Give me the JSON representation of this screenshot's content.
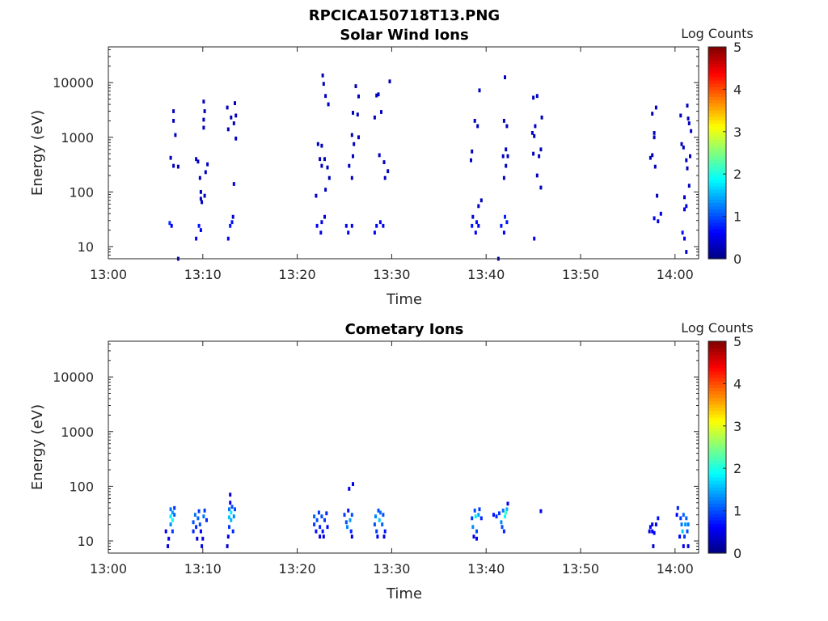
{
  "figure": {
    "title": "RPCICA150718T13.PNG"
  },
  "chart_data": [
    {
      "type": "heatmap",
      "title": "Solar Wind Ions",
      "xlabel": "Time",
      "ylabel": "Energy (eV)",
      "x_unit": "minutes since 13:00",
      "xlim": [
        0,
        62.5
      ],
      "xticks": [
        0,
        10,
        20,
        30,
        40,
        50,
        60
      ],
      "xtick_labels": [
        "13:00",
        "13:10",
        "13:20",
        "13:30",
        "13:40",
        "13:50",
        "14:00"
      ],
      "ylim": [
        6,
        45000
      ],
      "yscale": "log",
      "yticks": [
        10,
        100,
        1000,
        10000
      ],
      "ytick_labels": [
        "10",
        "100",
        "1000",
        "10000"
      ],
      "colorbar": {
        "label": "Log Counts",
        "range": [
          0,
          5
        ],
        "ticks": [
          "0",
          "1",
          "2",
          "3",
          "4",
          "5"
        ],
        "colormap": "jet"
      },
      "cells": [
        [
          6.5,
          27,
          0.8
        ],
        [
          6.7,
          24,
          0.6
        ],
        [
          6.6,
          420,
          0.3
        ],
        [
          6.9,
          300,
          0.3
        ],
        [
          6.9,
          2000,
          0.3
        ],
        [
          6.9,
          3000,
          0.3
        ],
        [
          7.1,
          1100,
          0.3
        ],
        [
          7.4,
          290,
          0.3
        ],
        [
          7.4,
          6,
          0.3
        ],
        [
          9.3,
          14,
          0.6
        ],
        [
          9.6,
          24,
          0.7
        ],
        [
          9.8,
          20,
          0.6
        ],
        [
          9.3,
          400,
          0.3
        ],
        [
          9.5,
          360,
          0.3
        ],
        [
          9.7,
          180,
          0.3
        ],
        [
          9.8,
          100,
          0.3
        ],
        [
          9.8,
          75,
          0.3
        ],
        [
          9.9,
          65,
          0.3
        ],
        [
          10.2,
          85,
          0.3
        ],
        [
          10.3,
          230,
          0.3
        ],
        [
          10.5,
          320,
          0.3
        ],
        [
          10.1,
          1500,
          0.3
        ],
        [
          10.1,
          2100,
          0.3
        ],
        [
          10.2,
          3000,
          0.3
        ],
        [
          10.1,
          4500,
          0.3
        ],
        [
          12.7,
          14,
          0.6
        ],
        [
          12.9,
          24,
          0.7
        ],
        [
          13.1,
          28,
          0.7
        ],
        [
          13.2,
          35,
          0.4
        ],
        [
          13.3,
          140,
          0.5
        ],
        [
          12.6,
          3500,
          0.3
        ],
        [
          13.0,
          2300,
          0.3
        ],
        [
          13.3,
          1800,
          0.3
        ],
        [
          13.5,
          2500,
          0.3
        ],
        [
          13.4,
          4200,
          0.3
        ],
        [
          13.5,
          950,
          0.3
        ],
        [
          12.7,
          1400,
          0.3
        ],
        [
          22.1,
          24,
          0.6
        ],
        [
          22.5,
          18,
          0.5
        ],
        [
          22.6,
          28,
          0.5
        ],
        [
          22.9,
          35,
          0.4
        ],
        [
          22.2,
          750,
          0.3
        ],
        [
          22.6,
          700,
          0.3
        ],
        [
          22.4,
          400,
          0.3
        ],
        [
          22.6,
          300,
          0.3
        ],
        [
          22.9,
          400,
          0.3
        ],
        [
          23.2,
          280,
          0.3
        ],
        [
          23.4,
          180,
          0.3
        ],
        [
          23.3,
          4000,
          0.3
        ],
        [
          23.0,
          5700,
          0.3
        ],
        [
          22.8,
          9500,
          0.3
        ],
        [
          22.7,
          13500,
          0.3
        ],
        [
          22.0,
          85,
          0.3
        ],
        [
          23.0,
          110,
          0.3
        ],
        [
          25.2,
          24,
          0.6
        ],
        [
          25.4,
          18,
          0.6
        ],
        [
          25.8,
          24,
          0.6
        ],
        [
          25.5,
          300,
          0.3
        ],
        [
          25.8,
          180,
          0.3
        ],
        [
          25.9,
          450,
          0.3
        ],
        [
          26.0,
          750,
          0.3
        ],
        [
          25.8,
          1100,
          0.3
        ],
        [
          25.9,
          2800,
          0.3
        ],
        [
          26.4,
          2600,
          0.3
        ],
        [
          26.2,
          8600,
          0.3
        ],
        [
          26.5,
          5600,
          0.3
        ],
        [
          26.5,
          1000,
          0.3
        ],
        [
          28.2,
          18,
          0.6
        ],
        [
          28.4,
          24,
          0.6
        ],
        [
          28.8,
          28,
          0.6
        ],
        [
          29.1,
          24,
          0.6
        ],
        [
          28.7,
          470,
          0.3
        ],
        [
          29.2,
          350,
          0.3
        ],
        [
          29.3,
          180,
          0.3
        ],
        [
          29.6,
          240,
          0.3
        ],
        [
          28.2,
          2300,
          0.3
        ],
        [
          28.9,
          2900,
          0.3
        ],
        [
          28.6,
          6100,
          0.3
        ],
        [
          29.8,
          10500,
          0.3
        ],
        [
          28.4,
          5800,
          0.3
        ],
        [
          38.5,
          24,
          0.7
        ],
        [
          38.6,
          35,
          0.5
        ],
        [
          38.9,
          18,
          0.6
        ],
        [
          39.0,
          28,
          0.7
        ],
        [
          39.2,
          24,
          0.6
        ],
        [
          39.5,
          70,
          0.3
        ],
        [
          39.2,
          55,
          0.3
        ],
        [
          38.5,
          550,
          0.3
        ],
        [
          38.4,
          380,
          0.3
        ],
        [
          38.8,
          2000,
          0.3
        ],
        [
          39.1,
          1600,
          0.3
        ],
        [
          39.3,
          7200,
          0.3
        ],
        [
          41.3,
          6,
          0.3
        ],
        [
          41.6,
          24,
          0.7
        ],
        [
          41.9,
          18,
          0.6
        ],
        [
          42.0,
          35,
          0.8
        ],
        [
          42.2,
          28,
          0.7
        ],
        [
          41.8,
          450,
          0.3
        ],
        [
          42.1,
          300,
          0.3
        ],
        [
          42.3,
          450,
          0.3
        ],
        [
          41.9,
          180,
          0.3
        ],
        [
          41.9,
          2000,
          0.3
        ],
        [
          42.2,
          1600,
          0.3
        ],
        [
          42.0,
          12500,
          0.3
        ],
        [
          42.1,
          600,
          0.3
        ],
        [
          45.1,
          14,
          0.6
        ],
        [
          44.9,
          1200,
          0.3
        ],
        [
          45.1,
          1050,
          0.3
        ],
        [
          45.0,
          500,
          0.3
        ],
        [
          45.4,
          200,
          0.3
        ],
        [
          45.6,
          450,
          0.3
        ],
        [
          45.8,
          600,
          0.3
        ],
        [
          45.8,
          120,
          0.3
        ],
        [
          45.0,
          5300,
          0.3
        ],
        [
          45.4,
          5700,
          0.3
        ],
        [
          45.2,
          1600,
          0.3
        ],
        [
          45.9,
          2300,
          0.3
        ],
        [
          57.4,
          420,
          0.3
        ],
        [
          57.6,
          2700,
          0.3
        ],
        [
          58.0,
          3500,
          0.3
        ],
        [
          57.8,
          1200,
          0.3
        ],
        [
          57.8,
          1000,
          0.3
        ],
        [
          57.6,
          470,
          0.3
        ],
        [
          57.9,
          290,
          0.3
        ],
        [
          58.1,
          85,
          0.3
        ],
        [
          57.8,
          33,
          0.5
        ],
        [
          58.2,
          29,
          0.5
        ],
        [
          58.5,
          40,
          0.5
        ],
        [
          60.8,
          18,
          0.7
        ],
        [
          61.0,
          14,
          0.6
        ],
        [
          61.0,
          48,
          0.5
        ],
        [
          61.2,
          55,
          0.5
        ],
        [
          61.2,
          380,
          0.3
        ],
        [
          61.3,
          270,
          0.3
        ],
        [
          61.4,
          2200,
          0.3
        ],
        [
          61.5,
          1800,
          0.3
        ],
        [
          61.3,
          3800,
          0.3
        ],
        [
          61.7,
          1300,
          0.3
        ],
        [
          60.7,
          750,
          0.3
        ],
        [
          60.9,
          650,
          0.3
        ],
        [
          61.6,
          450,
          0.3
        ],
        [
          60.6,
          2500,
          0.3
        ],
        [
          61.2,
          8,
          0.4
        ],
        [
          61.5,
          130,
          0.3
        ],
        [
          61.0,
          80,
          0.3
        ]
      ]
    },
    {
      "type": "heatmap",
      "title": "Cometary Ions",
      "xlabel": "Time",
      "ylabel": "Energy (eV)",
      "x_unit": "minutes since 13:00",
      "xlim": [
        0,
        62.5
      ],
      "xticks": [
        0,
        10,
        20,
        30,
        40,
        50,
        60
      ],
      "xtick_labels": [
        "13:00",
        "13:10",
        "13:20",
        "13:30",
        "13:40",
        "13:50",
        "14:00"
      ],
      "ylim": [
        6,
        45000
      ],
      "yscale": "log",
      "yticks": [
        10,
        100,
        1000,
        10000
      ],
      "ytick_labels": [
        "10",
        "100",
        "1000",
        "10000"
      ],
      "colorbar": {
        "label": "Log Counts",
        "range": [
          0,
          5
        ],
        "ticks": [
          "0",
          "1",
          "2",
          "3",
          "4",
          "5"
        ],
        "colormap": "jet"
      },
      "cells": [
        [
          6.1,
          15,
          0.5
        ],
        [
          6.3,
          8,
          0.4
        ],
        [
          6.4,
          11,
          0.5
        ],
        [
          6.6,
          20,
          1.3
        ],
        [
          6.6,
          28,
          1.8
        ],
        [
          6.6,
          38,
          1.2
        ],
        [
          6.8,
          15,
          0.9
        ],
        [
          6.8,
          24,
          1.9
        ],
        [
          6.8,
          33,
          1.4
        ],
        [
          7.0,
          40,
          0.9
        ],
        [
          7.0,
          30,
          1.1
        ],
        [
          9.0,
          15,
          0.8
        ],
        [
          9.0,
          22,
          1.0
        ],
        [
          9.2,
          30,
          1.2
        ],
        [
          9.3,
          18,
          0.8
        ],
        [
          9.5,
          26,
          1.1
        ],
        [
          9.6,
          35,
          0.9
        ],
        [
          9.7,
          20,
          1.0
        ],
        [
          9.8,
          15,
          0.6
        ],
        [
          10.1,
          28,
          1.2
        ],
        [
          10.2,
          36,
          0.9
        ],
        [
          10.4,
          24,
          0.8
        ],
        [
          9.4,
          11,
          0.5
        ],
        [
          10.0,
          11,
          0.5
        ],
        [
          9.9,
          8,
          0.5
        ],
        [
          12.6,
          8,
          0.4
        ],
        [
          12.7,
          12,
          0.5
        ],
        [
          12.8,
          18,
          0.9
        ],
        [
          12.8,
          27,
          1.6
        ],
        [
          12.8,
          38,
          1.2
        ],
        [
          12.9,
          50,
          0.6
        ],
        [
          12.9,
          70,
          0.4
        ],
        [
          13.0,
          33,
          1.8
        ],
        [
          13.0,
          24,
          1.5
        ],
        [
          13.1,
          42,
          1.0
        ],
        [
          13.2,
          15,
          0.8
        ],
        [
          13.3,
          28,
          1.3
        ],
        [
          13.4,
          38,
          1.0
        ],
        [
          21.8,
          20,
          0.9
        ],
        [
          21.8,
          28,
          1.1
        ],
        [
          22.0,
          15,
          0.7
        ],
        [
          22.1,
          24,
          1.0
        ],
        [
          22.3,
          33,
          0.9
        ],
        [
          22.4,
          18,
          0.8
        ],
        [
          22.6,
          28,
          1.0
        ],
        [
          22.7,
          15,
          0.7
        ],
        [
          22.9,
          24,
          0.9
        ],
        [
          23.1,
          32,
          0.8
        ],
        [
          23.2,
          18,
          0.6
        ],
        [
          22.4,
          12,
          0.5
        ],
        [
          22.8,
          12,
          0.5
        ],
        [
          25.0,
          30,
          0.9
        ],
        [
          25.2,
          22,
          1.0
        ],
        [
          25.3,
          18,
          1.3
        ],
        [
          25.4,
          36,
          0.7
        ],
        [
          25.6,
          24,
          1.4
        ],
        [
          25.7,
          15,
          0.8
        ],
        [
          25.8,
          30,
          1.0
        ],
        [
          25.5,
          90,
          0.5
        ],
        [
          25.9,
          110,
          0.5
        ],
        [
          25.8,
          12,
          0.5
        ],
        [
          28.2,
          20,
          1.0
        ],
        [
          28.3,
          28,
          1.3
        ],
        [
          28.4,
          15,
          0.9
        ],
        [
          28.6,
          36,
          1.0
        ],
        [
          28.7,
          24,
          1.6
        ],
        [
          28.8,
          33,
          1.2
        ],
        [
          29.0,
          20,
          1.1
        ],
        [
          29.1,
          30,
          1.0
        ],
        [
          29.3,
          15,
          0.7
        ],
        [
          28.5,
          12,
          0.6
        ],
        [
          29.2,
          12,
          0.5
        ],
        [
          38.5,
          26,
          0.9
        ],
        [
          38.6,
          18,
          1.3
        ],
        [
          38.8,
          36,
          1.0
        ],
        [
          38.9,
          28,
          1.8
        ],
        [
          39.0,
          15,
          1.0
        ],
        [
          39.2,
          30,
          1.4
        ],
        [
          39.3,
          38,
          0.9
        ],
        [
          39.5,
          26,
          0.8
        ],
        [
          39.0,
          11,
          0.6
        ],
        [
          38.7,
          12,
          0.5
        ],
        [
          40.8,
          30,
          0.7
        ],
        [
          41.1,
          28,
          0.8
        ],
        [
          41.4,
          32,
          0.9
        ],
        [
          41.6,
          22,
          1.3
        ],
        [
          41.7,
          18,
          1.0
        ],
        [
          41.8,
          36,
          1.2
        ],
        [
          42.0,
          28,
          1.9
        ],
        [
          42.2,
          38,
          1.5
        ],
        [
          42.3,
          48,
          0.6
        ],
        [
          42.1,
          33,
          2.2
        ],
        [
          41.9,
          15,
          0.8
        ],
        [
          45.8,
          35,
          0.6
        ],
        [
          57.3,
          15,
          0.5
        ],
        [
          57.4,
          18,
          0.6
        ],
        [
          57.6,
          15,
          0.6
        ],
        [
          57.6,
          20,
          0.5
        ],
        [
          57.8,
          14,
          0.6
        ],
        [
          58.0,
          20,
          0.6
        ],
        [
          58.2,
          26,
          0.7
        ],
        [
          57.7,
          8,
          0.4
        ],
        [
          60.2,
          30,
          0.6
        ],
        [
          60.3,
          40,
          0.8
        ],
        [
          60.6,
          26,
          0.9
        ],
        [
          60.7,
          20,
          1.2
        ],
        [
          60.8,
          15,
          1.6
        ],
        [
          60.9,
          30,
          1.1
        ],
        [
          61.0,
          12,
          0.9
        ],
        [
          61.1,
          20,
          1.4
        ],
        [
          61.2,
          26,
          1.1
        ],
        [
          61.3,
          15,
          1.0
        ],
        [
          61.4,
          20,
          1.2
        ],
        [
          60.9,
          8,
          0.5
        ],
        [
          61.4,
          8,
          0.5
        ],
        [
          60.5,
          12,
          0.6
        ]
      ]
    }
  ]
}
